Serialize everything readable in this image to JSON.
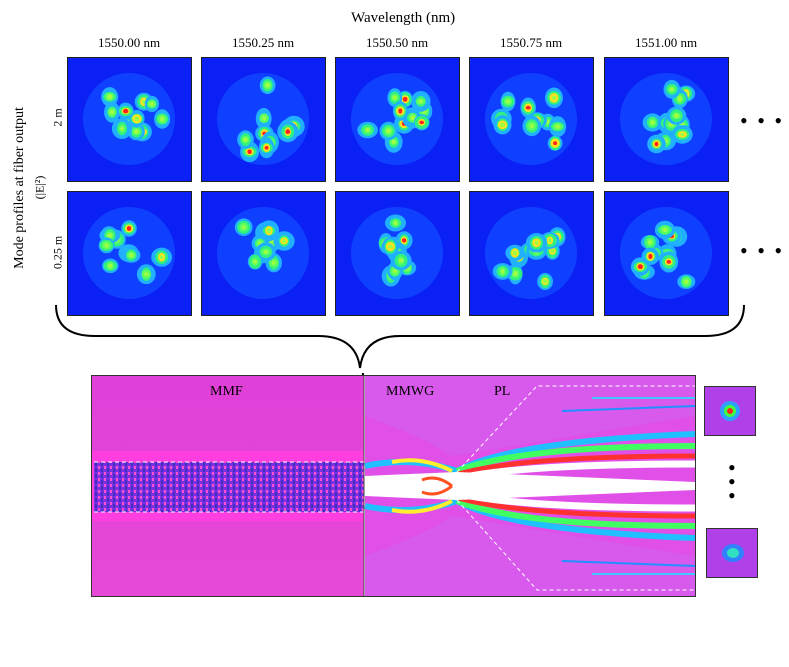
{
  "header": {
    "title": "Wavelength (nm)"
  },
  "columns": [
    "1550.00 nm",
    "1550.25 nm",
    "1550.50 nm",
    "1550.75 nm",
    "1551.00 nm"
  ],
  "y_axis": {
    "title": "Mode profiles at fiber output",
    "unit": "(|E|²)"
  },
  "rows": [
    {
      "label": "2 m"
    },
    {
      "label": "0.25 m"
    }
  ],
  "ellipsis": "• • •",
  "simulation": {
    "labels": {
      "mmf": "MMF",
      "mmwg": "MMWG",
      "pl": "PL"
    }
  },
  "colors": {
    "mode_bg": "#0a20f5",
    "sim_bg": "#e040d8",
    "hot": "#ff2020"
  },
  "vertical_ellipsis": "•\n•\n•"
}
